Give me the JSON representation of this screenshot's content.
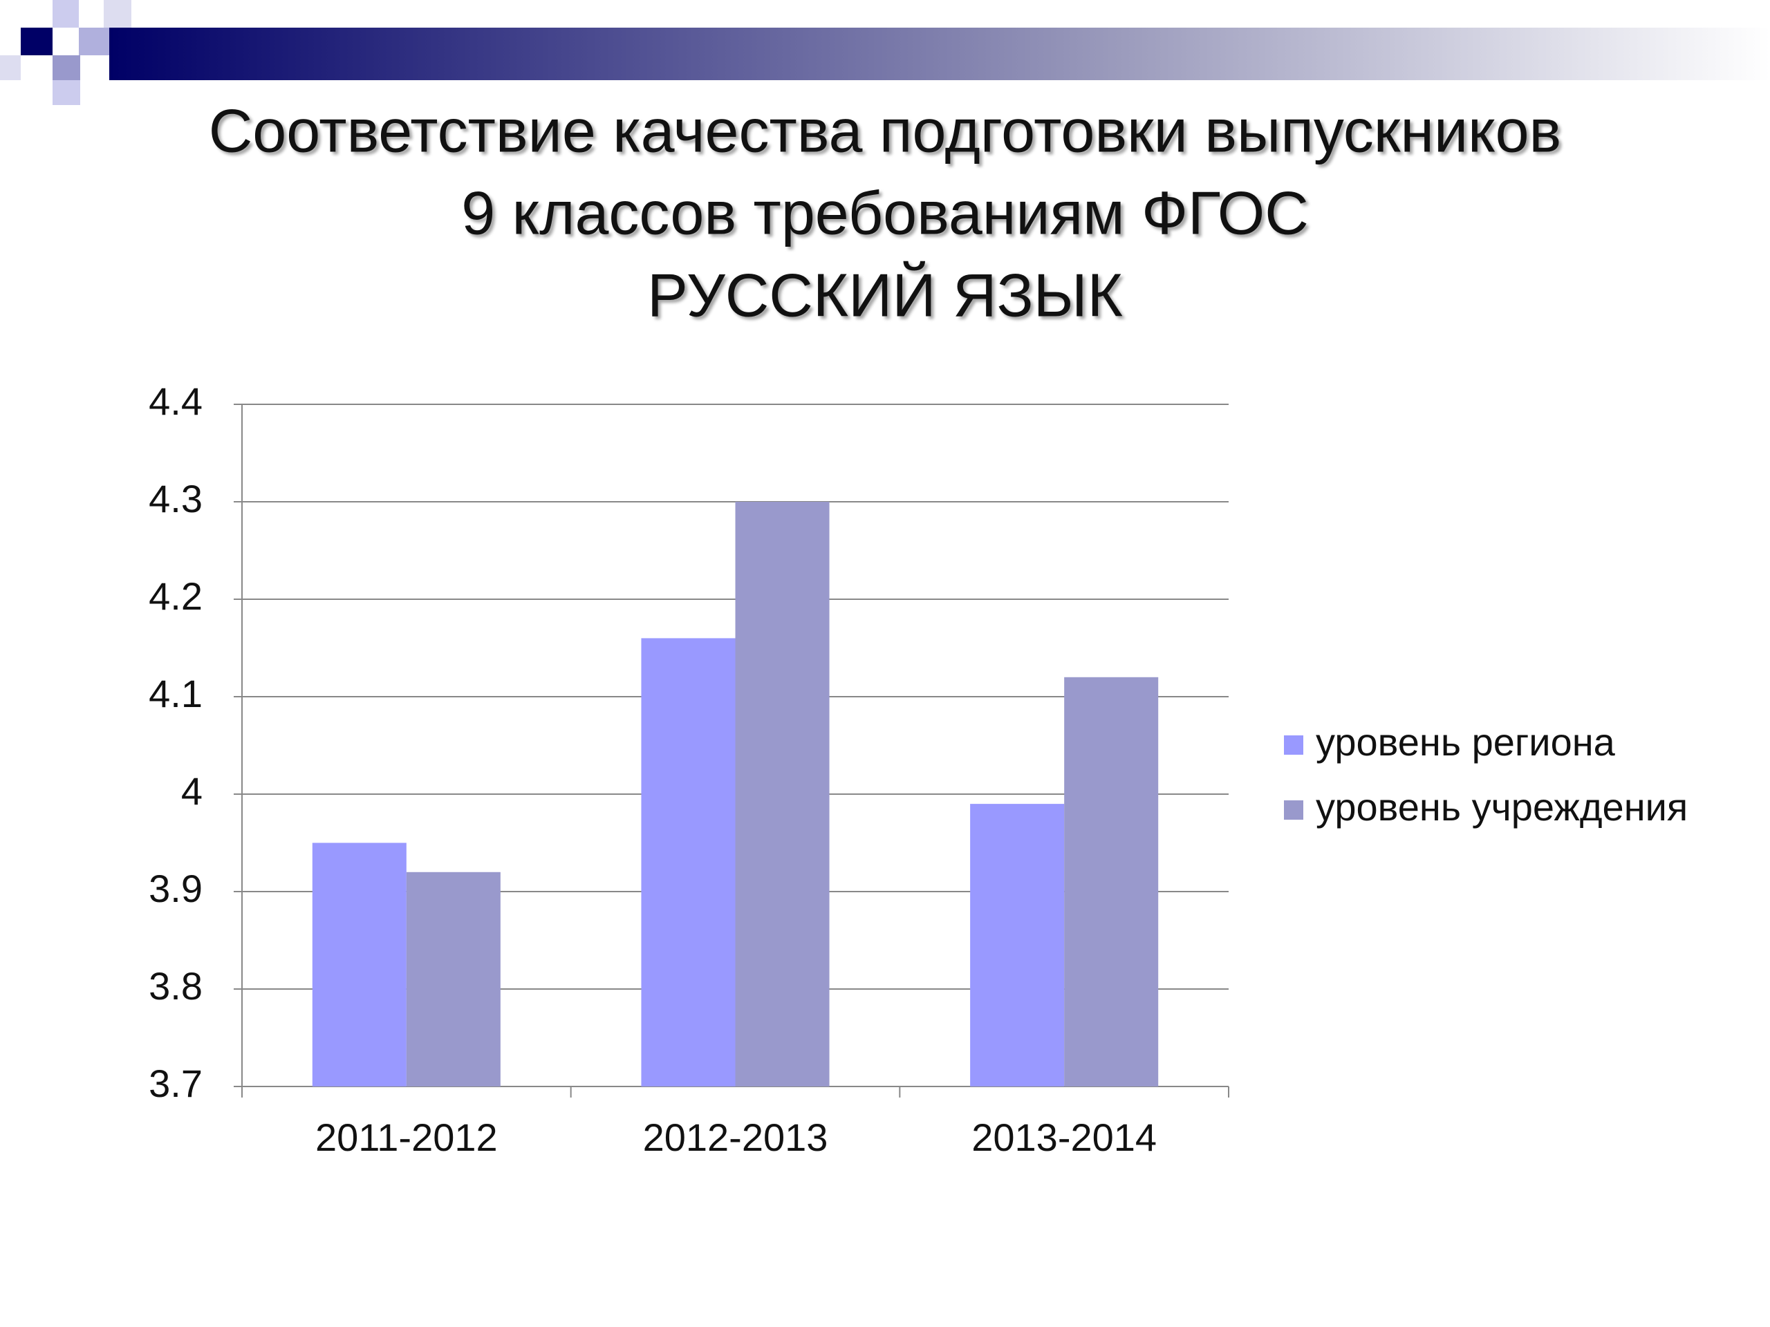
{
  "chart_data": {
    "type": "bar",
    "title": [
      "Соответствие качества подготовки выпускников",
      "9 классов требованиям ФГОС",
      "РУССКИЙ ЯЗЫК"
    ],
    "categories": [
      "2011-2012",
      "2012-2013",
      "2013-2014"
    ],
    "series": [
      {
        "name": "уровень региона",
        "color": "#9999ff",
        "values": [
          3.95,
          4.16,
          3.99
        ]
      },
      {
        "name": "уровень учреждения",
        "color": "#9999cc",
        "values": [
          3.92,
          4.3,
          4.12
        ]
      }
    ],
    "ylim": [
      3.7,
      4.4
    ],
    "yticks": [
      3.7,
      3.8,
      3.9,
      4,
      4.1,
      4.2,
      4.3,
      4.4
    ],
    "grid": true,
    "legend": "right"
  }
}
